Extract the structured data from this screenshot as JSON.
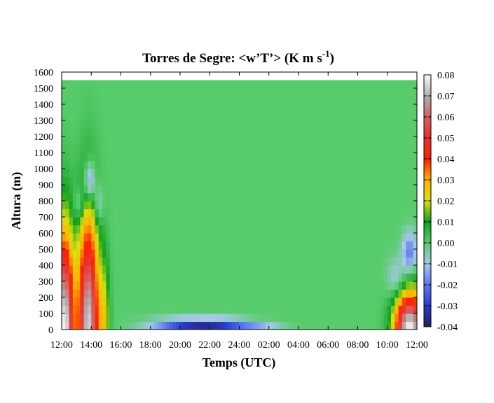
{
  "chart_data": {
    "type": "heatmap",
    "title": "Torres de Segre: <w’T’> (K m s",
    "title_exponent": "-1",
    "title_suffix": ")",
    "xlabel": "Temps (UTC)",
    "ylabel": "Altura (m)",
    "x_ticks": [
      "12:00",
      "14:00",
      "16:00",
      "18:00",
      "20:00",
      "22:00",
      "24:00",
      "02:00",
      "04:00",
      "06:00",
      "08:00",
      "10:00",
      "12:00"
    ],
    "y_ticks": [
      "0",
      "100",
      "200",
      "300",
      "400",
      "500",
      "600",
      "700",
      "800",
      "900",
      "1000",
      "1100",
      "1200",
      "1300",
      "1400",
      "1500",
      "1600"
    ],
    "ylim": [
      0,
      1600
    ],
    "data_top_height": 1550,
    "colorbar": {
      "ticks": [
        "0.08",
        "0.07",
        "0.06",
        "0.05",
        "0.04",
        "0.03",
        "0.02",
        "0.01",
        "0.00",
        "-0.01",
        "-0.02",
        "-0.03",
        "-0.04"
      ],
      "range": [
        -0.04,
        0.08
      ],
      "stops": [
        {
          "value": -0.04,
          "color": "#20205a"
        },
        {
          "value": -0.03,
          "color": "#2a3ad0"
        },
        {
          "value": -0.02,
          "color": "#5a78f0"
        },
        {
          "value": -0.01,
          "color": "#a8c8e8"
        },
        {
          "value": 0.0,
          "color": "#58cc6c"
        },
        {
          "value": 0.01,
          "color": "#10a020"
        },
        {
          "value": 0.02,
          "color": "#d8e010"
        },
        {
          "value": 0.03,
          "color": "#ffb000"
        },
        {
          "value": 0.04,
          "color": "#ff2000"
        },
        {
          "value": 0.05,
          "color": "#e83030"
        },
        {
          "value": 0.06,
          "color": "#d86060"
        },
        {
          "value": 0.07,
          "color": "#b0b0b0"
        },
        {
          "value": 0.08,
          "color": "#f8f8f8"
        }
      ]
    },
    "features": [
      {
        "t_hours": 0.2,
        "z_center": 0,
        "t_width": 0.6,
        "z_extent": 600,
        "peak": 0.08
      },
      {
        "t_hours": 1.8,
        "z_center": 0,
        "t_width": 0.7,
        "z_extent": 700,
        "peak": 0.075
      },
      {
        "t_hours": 2.9,
        "z_center": 0,
        "t_width": 0.35,
        "z_extent": 430,
        "peak": 0.02
      },
      {
        "t_hours": 1.9,
        "z_center": 920,
        "t_width": 0.35,
        "z_extent": 120,
        "peak": -0.025
      },
      {
        "t_hours": 2.5,
        "z_center": 780,
        "t_width": 0.3,
        "z_extent": 120,
        "peak": -0.012
      },
      {
        "t_hours": 1.2,
        "z_center": 780,
        "t_width": 0.4,
        "z_extent": 100,
        "peak": -0.01
      },
      {
        "t_hours": 23.5,
        "z_center": 0,
        "t_width": 1.0,
        "z_extent": 230,
        "peak": 0.08
      },
      {
        "t_hours": 23.5,
        "z_center": 480,
        "t_width": 0.5,
        "z_extent": 130,
        "peak": -0.02
      },
      {
        "t_hours": 22.6,
        "z_center": 320,
        "t_width": 0.6,
        "z_extent": 120,
        "peak": -0.012
      },
      {
        "t_hours": 8.5,
        "z_center": 30,
        "t_width": 2.5,
        "z_extent": 40,
        "peak": -0.028
      },
      {
        "t_hours": 11.0,
        "z_center": 30,
        "t_width": 2.0,
        "z_extent": 40,
        "peak": -0.02
      },
      {
        "t_hours": 13.5,
        "z_center": 15,
        "t_width": 1.5,
        "z_extent": 30,
        "peak": -0.01
      }
    ]
  }
}
